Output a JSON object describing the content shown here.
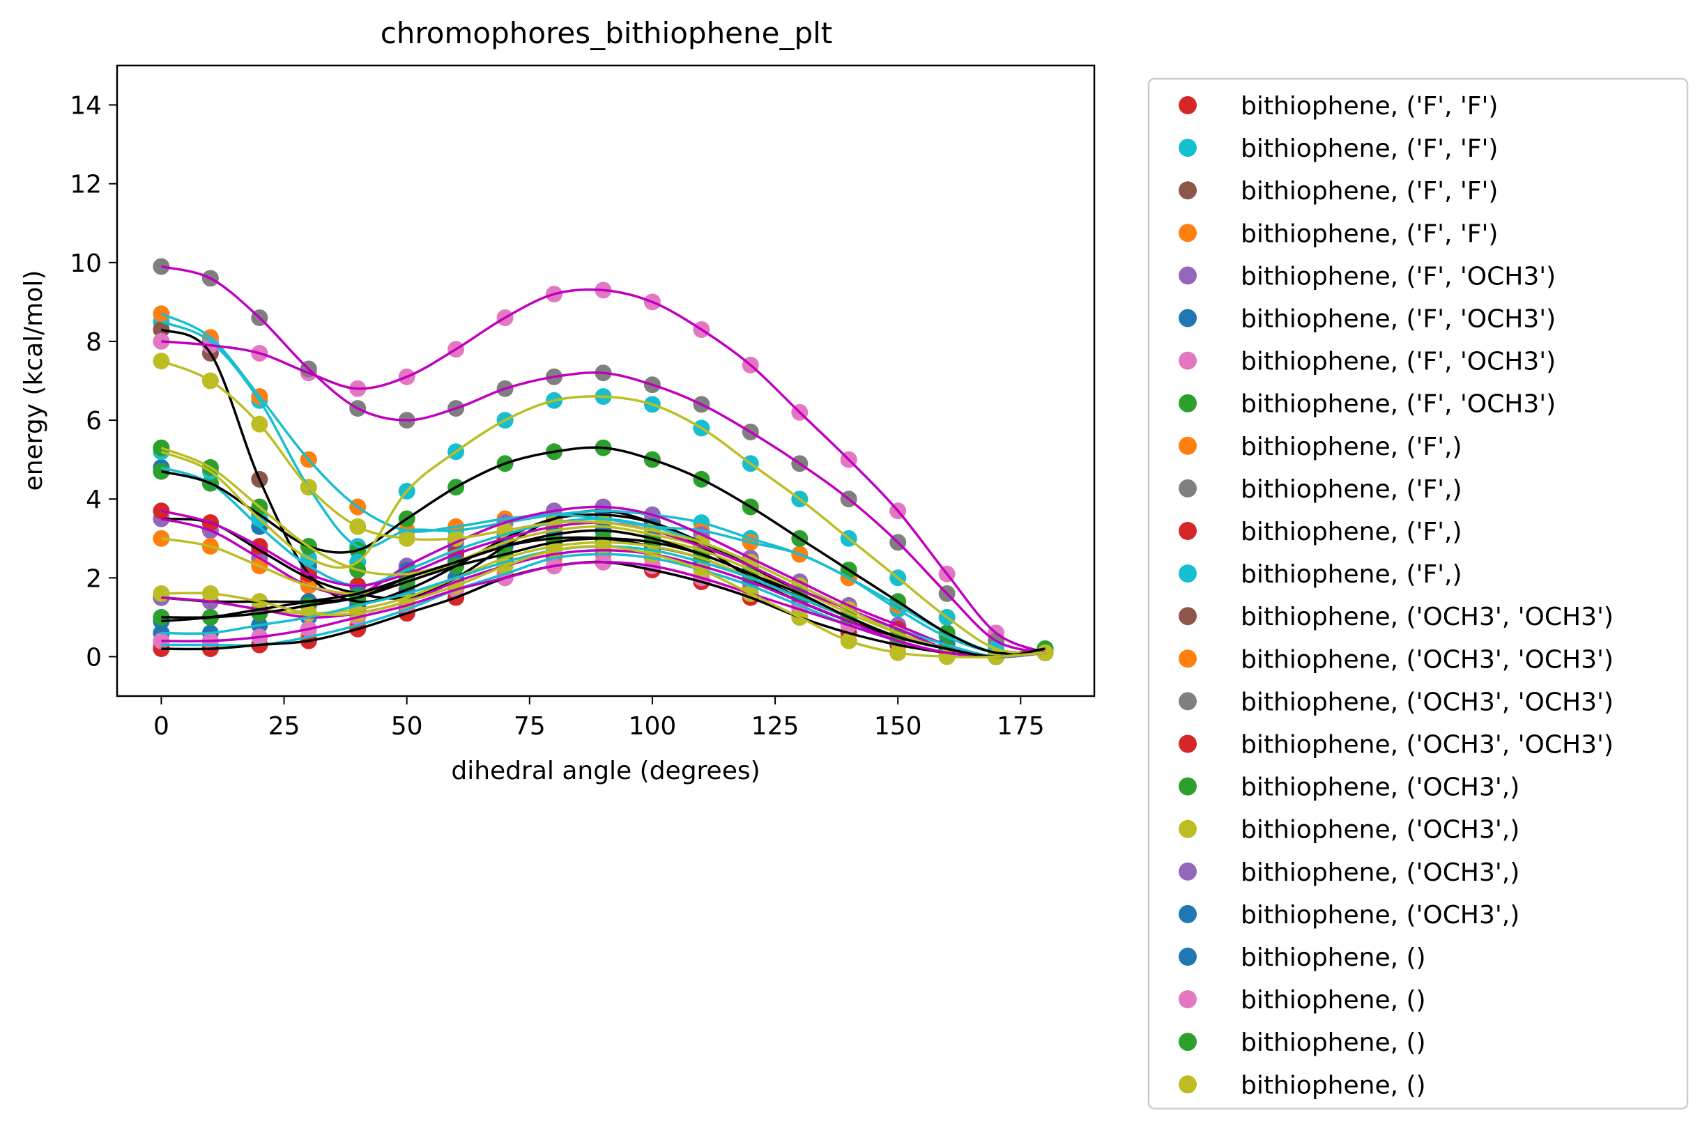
{
  "chart_data": {
    "type": "scatter",
    "title": "chromophores_bithiophene_plt",
    "xlabel": "dihedral angle (degrees)",
    "ylabel": "energy (kcal/mol)",
    "xlim": [
      -9,
      190
    ],
    "ylim": [
      -1,
      15
    ],
    "xticks": [
      0,
      25,
      50,
      75,
      100,
      125,
      150,
      175
    ],
    "yticks": [
      0,
      2,
      4,
      6,
      8,
      10,
      12,
      14
    ],
    "x": [
      0,
      10,
      20,
      30,
      40,
      50,
      60,
      70,
      80,
      90,
      100,
      110,
      120,
      130,
      140,
      150,
      160,
      170,
      180
    ],
    "grid": false,
    "legend_position": "outside-right",
    "series": [
      {
        "name": "bithiophene, ('F', 'F')",
        "color": "#d62728",
        "line_color": "#000000",
        "values": [
          3.5,
          3.4,
          2.7,
          2.0,
          1.6,
          1.5,
          2.0,
          2.8,
          3.5,
          3.7,
          3.4,
          2.8,
          2.0,
          1.4,
          0.9,
          0.5,
          0.2,
          0.0,
          0.1
        ]
      },
      {
        "name": "bithiophene, ('F', 'F')",
        "color": "#17becf",
        "line_color": "#17becf",
        "values": [
          8.5,
          8.0,
          6.5,
          4.3,
          2.8,
          3.2,
          3.2,
          3.4,
          3.6,
          3.7,
          3.6,
          3.4,
          3.0,
          2.6,
          2.0,
          1.2,
          0.5,
          0.1,
          0.1
        ]
      },
      {
        "name": "bithiophene, ('F', 'F')",
        "color": "#8c564b",
        "line_color": "#000000",
        "values": [
          8.3,
          7.7,
          4.5,
          2.1,
          1.4,
          1.7,
          2.3,
          3.0,
          3.5,
          3.6,
          3.4,
          2.9,
          2.3,
          1.6,
          1.0,
          0.5,
          0.2,
          0.0,
          0.1
        ]
      },
      {
        "name": "bithiophene, ('F', 'F')",
        "color": "#ff7f0e",
        "line_color": "#17becf",
        "values": [
          8.7,
          8.1,
          6.6,
          5.0,
          3.8,
          3.2,
          3.3,
          3.5,
          3.6,
          3.5,
          3.3,
          3.2,
          2.9,
          2.6,
          2.0,
          1.3,
          0.6,
          0.1,
          0.1
        ]
      },
      {
        "name": "bithiophene, ('F', 'OCH3')",
        "color": "#9467bd",
        "line_color": "#c000c0",
        "values": [
          3.5,
          3.2,
          2.5,
          1.8,
          1.6,
          2.3,
          2.9,
          3.4,
          3.7,
          3.8,
          3.6,
          3.1,
          2.5,
          1.9,
          1.3,
          0.8,
          0.3,
          0.0,
          0.1
        ]
      },
      {
        "name": "bithiophene, ('F', 'OCH3')",
        "color": "#1f77b4",
        "line_color": "#17becf",
        "values": [
          4.8,
          4.4,
          3.3,
          2.3,
          1.8,
          2.2,
          2.7,
          3.1,
          3.4,
          3.5,
          3.3,
          2.9,
          2.4,
          1.8,
          1.2,
          0.7,
          0.3,
          0.0,
          0.1
        ]
      },
      {
        "name": "bithiophene, ('F', 'OCH3')",
        "color": "#e377c2",
        "line_color": "#c000c0",
        "values": [
          8.0,
          7.9,
          7.7,
          7.2,
          6.8,
          7.1,
          7.8,
          8.6,
          9.2,
          9.3,
          9.0,
          8.3,
          7.4,
          6.2,
          5.0,
          3.7,
          2.1,
          0.6,
          0.1
        ]
      },
      {
        "name": "bithiophene, ('F', 'OCH3')",
        "color": "#2ca02c",
        "line_color": "#000000",
        "values": [
          4.7,
          4.4,
          3.6,
          2.8,
          2.7,
          3.5,
          4.3,
          4.9,
          5.2,
          5.3,
          5.0,
          4.5,
          3.8,
          3.0,
          2.2,
          1.4,
          0.6,
          0.1,
          0.2
        ]
      },
      {
        "name": "bithiophene, ('F',)",
        "color": "#ff7f0e",
        "line_color": "#bcbd22",
        "values": [
          3.0,
          2.8,
          2.3,
          1.8,
          1.6,
          1.9,
          2.4,
          2.9,
          3.2,
          3.3,
          3.1,
          2.8,
          2.3,
          1.7,
          1.1,
          0.6,
          0.2,
          0.0,
          0.1
        ]
      },
      {
        "name": "bithiophene, ('F',)",
        "color": "#7f7f7f",
        "line_color": "#c000c0",
        "values": [
          9.9,
          9.6,
          8.6,
          7.3,
          6.3,
          6.0,
          6.3,
          6.8,
          7.1,
          7.2,
          6.9,
          6.4,
          5.7,
          4.9,
          4.0,
          2.9,
          1.6,
          0.4,
          0.1
        ]
      },
      {
        "name": "bithiophene, ('F',)",
        "color": "#d62728",
        "line_color": "#c000c0",
        "values": [
          3.7,
          3.4,
          2.8,
          2.1,
          1.8,
          2.1,
          2.6,
          3.0,
          3.3,
          3.4,
          3.2,
          2.8,
          2.3,
          1.7,
          1.2,
          0.7,
          0.2,
          0.0,
          0.1
        ]
      },
      {
        "name": "bithiophene, ('F',)",
        "color": "#17becf",
        "line_color": "#bcbd22",
        "values": [
          5.2,
          4.7,
          3.5,
          2.5,
          2.4,
          4.2,
          5.2,
          6.0,
          6.5,
          6.6,
          6.4,
          5.8,
          4.9,
          4.0,
          3.0,
          2.0,
          1.0,
          0.2,
          0.1
        ]
      },
      {
        "name": "bithiophene, ('OCH3', 'OCH3')",
        "color": "#8c564b",
        "line_color": "#000000",
        "values": [
          1.5,
          1.4,
          1.4,
          1.4,
          1.5,
          2.0,
          2.4,
          2.8,
          3.0,
          3.0,
          2.8,
          2.5,
          2.0,
          1.5,
          1.0,
          0.5,
          0.2,
          0.0,
          0.1
        ]
      },
      {
        "name": "bithiophene, ('OCH3', 'OCH3')",
        "color": "#ff7f0e",
        "line_color": "#17becf",
        "values": [
          0.3,
          0.3,
          0.3,
          0.5,
          0.8,
          1.2,
          1.7,
          2.1,
          2.5,
          2.6,
          2.5,
          2.2,
          1.8,
          1.3,
          0.8,
          0.4,
          0.1,
          0.0,
          0.1
        ]
      },
      {
        "name": "bithiophene, ('OCH3', 'OCH3')",
        "color": "#7f7f7f",
        "line_color": "#bcbd22",
        "values": [
          1.5,
          1.4,
          1.2,
          1.1,
          1.2,
          1.5,
          2.0,
          2.5,
          2.8,
          2.9,
          2.8,
          2.5,
          2.0,
          1.5,
          1.0,
          0.5,
          0.2,
          0.0,
          0.1
        ]
      },
      {
        "name": "bithiophene, ('OCH3', 'OCH3')",
        "color": "#d62728",
        "line_color": "#000000",
        "values": [
          0.2,
          0.2,
          0.3,
          0.4,
          0.7,
          1.1,
          1.5,
          2.0,
          2.3,
          2.4,
          2.2,
          1.9,
          1.5,
          1.0,
          0.6,
          0.3,
          0.1,
          0.0,
          0.1
        ]
      },
      {
        "name": "bithiophene, ('OCH3',)",
        "color": "#2ca02c",
        "line_color": "#bcbd22",
        "values": [
          5.3,
          4.8,
          3.8,
          2.8,
          2.2,
          2.1,
          2.4,
          2.8,
          3.1,
          3.2,
          3.0,
          2.7,
          2.2,
          1.6,
          1.0,
          0.5,
          0.2,
          0.0,
          0.2
        ]
      },
      {
        "name": "bithiophene, ('OCH3',)",
        "color": "#bcbd22",
        "line_color": "#bcbd22",
        "values": [
          7.5,
          7.0,
          5.9,
          4.3,
          3.3,
          3.0,
          3.0,
          3.2,
          3.4,
          3.4,
          3.2,
          2.9,
          2.4,
          1.8,
          1.2,
          0.6,
          0.2,
          0.0,
          0.1
        ]
      },
      {
        "name": "bithiophene, ('OCH3',)",
        "color": "#9467bd",
        "line_color": "#c000c0",
        "values": [
          1.5,
          1.4,
          1.2,
          1.0,
          1.1,
          1.4,
          1.9,
          2.3,
          2.6,
          2.7,
          2.6,
          2.3,
          1.9,
          1.4,
          0.9,
          0.4,
          0.1,
          0.0,
          0.1
        ]
      },
      {
        "name": "bithiophene, ('OCH3',)",
        "color": "#1f77b4",
        "line_color": "#000000",
        "values": [
          0.9,
          1.0,
          1.2,
          1.4,
          1.6,
          2.0,
          2.4,
          2.8,
          3.1,
          3.2,
          3.0,
          2.6,
          2.1,
          1.5,
          1.0,
          0.5,
          0.2,
          0.0,
          0.1
        ]
      },
      {
        "name": "bithiophene, ()",
        "color": "#1f77b4",
        "line_color": "#17becf",
        "values": [
          0.6,
          0.6,
          0.8,
          1.0,
          1.3,
          1.6,
          2.0,
          2.4,
          2.7,
          2.8,
          2.7,
          2.4,
          2.0,
          1.5,
          1.0,
          0.5,
          0.2,
          0.0,
          0.1
        ]
      },
      {
        "name": "bithiophene, ()",
        "color": "#e377c2",
        "line_color": "#c000c0",
        "values": [
          0.4,
          0.4,
          0.5,
          0.7,
          1.0,
          1.3,
          1.7,
          2.0,
          2.3,
          2.4,
          2.3,
          2.0,
          1.6,
          1.2,
          0.8,
          0.4,
          0.1,
          0.0,
          0.1
        ]
      },
      {
        "name": "bithiophene, ()",
        "color": "#2ca02c",
        "line_color": "#000000",
        "values": [
          1.0,
          1.0,
          1.1,
          1.3,
          1.5,
          1.9,
          2.3,
          2.6,
          2.9,
          3.0,
          2.9,
          2.6,
          2.1,
          1.6,
          1.0,
          0.5,
          0.2,
          0.0,
          0.2
        ]
      },
      {
        "name": "bithiophene, ()",
        "color": "#bcbd22",
        "line_color": "#bcbd22",
        "values": [
          1.6,
          1.6,
          1.4,
          1.1,
          1.1,
          1.4,
          1.8,
          2.3,
          2.7,
          2.8,
          2.6,
          2.2,
          1.6,
          1.0,
          0.4,
          0.1,
          0.0,
          0.0,
          0.1
        ]
      }
    ]
  }
}
